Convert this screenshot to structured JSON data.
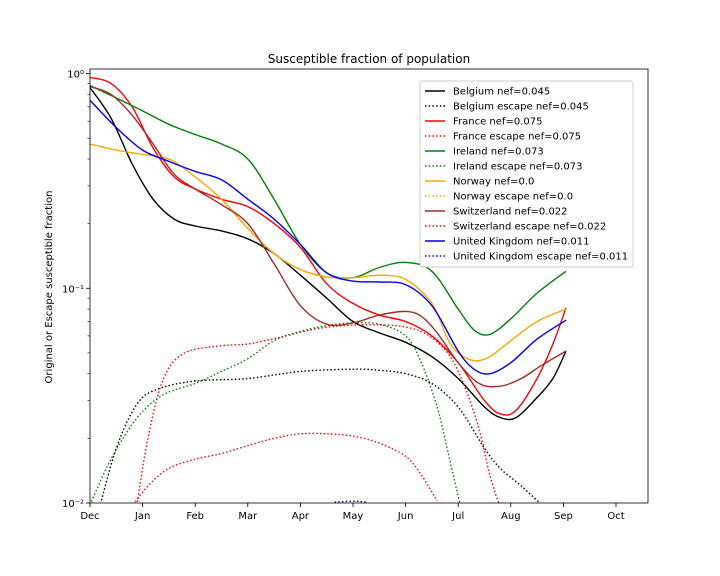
{
  "chart_data": {
    "type": "line",
    "title": "Susceptible fraction of population",
    "xlabel": "",
    "ylabel": "Original or Escape susceptible fraction",
    "yscale": "log",
    "ylim": [
      0.01,
      1.05
    ],
    "xlim": [
      0,
      10.6
    ],
    "x_ticks": [
      {
        "x": 0,
        "label": "Dec"
      },
      {
        "x": 1,
        "label": "Jan"
      },
      {
        "x": 2,
        "label": "Feb"
      },
      {
        "x": 3,
        "label": "Mar"
      },
      {
        "x": 4,
        "label": "Apr"
      },
      {
        "x": 5,
        "label": "May"
      },
      {
        "x": 6,
        "label": "Jun"
      },
      {
        "x": 7,
        "label": "Jul"
      },
      {
        "x": 8,
        "label": "Aug"
      },
      {
        "x": 9,
        "label": "Sep"
      },
      {
        "x": 10,
        "label": "Oct"
      }
    ],
    "y_ticks": [
      {
        "y": 0.01,
        "label": "10⁻²"
      },
      {
        "y": 0.1,
        "label": "10⁻¹"
      },
      {
        "y": 1,
        "label": "10⁰"
      }
    ],
    "legend_position": "top-right",
    "grid": false,
    "series": [
      {
        "name": "Belgium nef=0.045",
        "color": "#000000",
        "style": "solid",
        "points": [
          [
            0,
            0.86
          ],
          [
            0.4,
            0.62
          ],
          [
            0.8,
            0.38
          ],
          [
            1.2,
            0.26
          ],
          [
            1.6,
            0.21
          ],
          [
            2,
            0.195
          ],
          [
            2.5,
            0.185
          ],
          [
            3,
            0.17
          ],
          [
            3.5,
            0.145
          ],
          [
            4,
            0.115
          ],
          [
            4.5,
            0.09
          ],
          [
            5,
            0.07
          ],
          [
            5.5,
            0.062
          ],
          [
            6,
            0.056
          ],
          [
            6.5,
            0.048
          ],
          [
            7,
            0.038
          ],
          [
            7.5,
            0.028
          ],
          [
            7.8,
            0.025
          ],
          [
            8.1,
            0.025
          ],
          [
            8.5,
            0.031
          ],
          [
            8.8,
            0.038
          ],
          [
            9.05,
            0.051
          ]
        ]
      },
      {
        "name": "Belgium escape nef=0.045",
        "color": "#000000",
        "style": "dotted",
        "points": [
          [
            0.13,
            0.0085
          ],
          [
            0.5,
            0.018
          ],
          [
            0.9,
            0.029
          ],
          [
            1.3,
            0.034
          ],
          [
            2,
            0.037
          ],
          [
            3,
            0.038
          ],
          [
            4,
            0.041
          ],
          [
            5,
            0.042
          ],
          [
            5.5,
            0.0415
          ],
          [
            6,
            0.04
          ],
          [
            6.5,
            0.036
          ],
          [
            7,
            0.028
          ],
          [
            7.5,
            0.018
          ],
          [
            7.8,
            0.0145
          ],
          [
            8.2,
            0.012
          ],
          [
            8.65,
            0.0095
          ]
        ]
      },
      {
        "name": "France nef=0.075",
        "color": "#ff0000",
        "style": "solid",
        "points": [
          [
            0,
            0.96
          ],
          [
            0.4,
            0.9
          ],
          [
            0.8,
            0.7
          ],
          [
            1.2,
            0.45
          ],
          [
            1.6,
            0.33
          ],
          [
            2,
            0.29
          ],
          [
            2.5,
            0.26
          ],
          [
            3,
            0.24
          ],
          [
            3.5,
            0.2
          ],
          [
            4,
            0.155
          ],
          [
            4.5,
            0.105
          ],
          [
            5,
            0.085
          ],
          [
            5.5,
            0.075
          ],
          [
            6,
            0.07
          ],
          [
            6.5,
            0.06
          ],
          [
            7,
            0.045
          ],
          [
            7.5,
            0.03
          ],
          [
            7.8,
            0.026
          ],
          [
            8.1,
            0.027
          ],
          [
            8.5,
            0.038
          ],
          [
            8.8,
            0.055
          ],
          [
            9.05,
            0.081
          ]
        ]
      },
      {
        "name": "France escape nef=0.075",
        "color": "#ff0000",
        "style": "dotted",
        "points": [
          [
            0.87,
            0.009
          ],
          [
            1.1,
            0.02
          ],
          [
            1.4,
            0.038
          ],
          [
            1.8,
            0.05
          ],
          [
            2.5,
            0.054
          ],
          [
            3,
            0.055
          ],
          [
            3.6,
            0.059
          ],
          [
            4.2,
            0.064
          ],
          [
            4.8,
            0.067
          ],
          [
            5.5,
            0.0675
          ],
          [
            6,
            0.066
          ],
          [
            6.4,
            0.061
          ],
          [
            6.8,
            0.05
          ],
          [
            7.1,
            0.036
          ],
          [
            7.4,
            0.022
          ],
          [
            7.6,
            0.0135
          ],
          [
            7.8,
            0.0095
          ]
        ]
      },
      {
        "name": "Ireland nef=0.073",
        "color": "#008000",
        "style": "solid",
        "points": [
          [
            0,
            0.88
          ],
          [
            0.5,
            0.77
          ],
          [
            1,
            0.67
          ],
          [
            1.5,
            0.58
          ],
          [
            2,
            0.52
          ],
          [
            2.5,
            0.47
          ],
          [
            3,
            0.4
          ],
          [
            3.5,
            0.26
          ],
          [
            4,
            0.16
          ],
          [
            4.5,
            0.118
          ],
          [
            5,
            0.112
          ],
          [
            5.5,
            0.125
          ],
          [
            6,
            0.132
          ],
          [
            6.5,
            0.12
          ],
          [
            7,
            0.08
          ],
          [
            7.3,
            0.064
          ],
          [
            7.6,
            0.061
          ],
          [
            8,
            0.072
          ],
          [
            8.5,
            0.095
          ],
          [
            9.05,
            0.12
          ]
        ]
      },
      {
        "name": "Ireland escape nef=0.073",
        "color": "#008000",
        "style": "dotted",
        "points": [
          [
            0,
            0.0098
          ],
          [
            0.4,
            0.016
          ],
          [
            0.9,
            0.025
          ],
          [
            1.4,
            0.032
          ],
          [
            2,
            0.036
          ],
          [
            2.5,
            0.041
          ],
          [
            3,
            0.047
          ],
          [
            3.5,
            0.057
          ],
          [
            4,
            0.063
          ],
          [
            4.5,
            0.067
          ],
          [
            5,
            0.069
          ],
          [
            5.5,
            0.068
          ],
          [
            6,
            0.06
          ],
          [
            6.3,
            0.045
          ],
          [
            6.6,
            0.028
          ],
          [
            6.8,
            0.0175
          ],
          [
            7.05,
            0.0095
          ]
        ]
      },
      {
        "name": "Norway nef=0.0",
        "color": "#ffa500",
        "style": "solid",
        "points": [
          [
            0,
            0.47
          ],
          [
            0.5,
            0.44
          ],
          [
            1,
            0.42
          ],
          [
            1.5,
            0.4
          ],
          [
            2,
            0.33
          ],
          [
            2.5,
            0.26
          ],
          [
            3,
            0.19
          ],
          [
            3.5,
            0.145
          ],
          [
            4,
            0.122
          ],
          [
            4.5,
            0.113
          ],
          [
            5,
            0.112
          ],
          [
            5.5,
            0.115
          ],
          [
            6,
            0.11
          ],
          [
            6.5,
            0.085
          ],
          [
            6.8,
            0.058
          ],
          [
            7,
            0.05
          ],
          [
            7.3,
            0.046
          ],
          [
            7.6,
            0.048
          ],
          [
            8,
            0.057
          ],
          [
            8.5,
            0.07
          ],
          [
            9.05,
            0.08
          ]
        ]
      },
      {
        "name": "Norway escape nef=0.0",
        "color": "#ffa500",
        "style": "dotted",
        "points": []
      },
      {
        "name": "Switzerland nef=0.022",
        "color": "#a52a2a",
        "style": "solid",
        "points": [
          [
            0,
            0.87
          ],
          [
            0.4,
            0.8
          ],
          [
            0.8,
            0.64
          ],
          [
            1.2,
            0.47
          ],
          [
            1.6,
            0.34
          ],
          [
            2,
            0.29
          ],
          [
            2.5,
            0.245
          ],
          [
            3,
            0.2
          ],
          [
            3.5,
            0.13
          ],
          [
            4,
            0.083
          ],
          [
            4.5,
            0.068
          ],
          [
            5,
            0.069
          ],
          [
            5.5,
            0.075
          ],
          [
            6,
            0.078
          ],
          [
            6.3,
            0.074
          ],
          [
            6.6,
            0.062
          ],
          [
            7,
            0.045
          ],
          [
            7.4,
            0.036
          ],
          [
            7.8,
            0.035
          ],
          [
            8.2,
            0.038
          ],
          [
            8.6,
            0.044
          ],
          [
            9.05,
            0.051
          ]
        ]
      },
      {
        "name": "Switzerland escape nef=0.022",
        "color": "#ff0000",
        "style": "dotted",
        "points": [
          [
            0.78,
            0.0095
          ],
          [
            1.1,
            0.012
          ],
          [
            1.5,
            0.0145
          ],
          [
            2,
            0.016
          ],
          [
            2.5,
            0.017
          ],
          [
            3,
            0.0185
          ],
          [
            3.5,
            0.02
          ],
          [
            4,
            0.021
          ],
          [
            4.5,
            0.021
          ],
          [
            5,
            0.0205
          ],
          [
            5.5,
            0.019
          ],
          [
            6,
            0.0165
          ],
          [
            6.3,
            0.0135
          ],
          [
            6.6,
            0.0102
          ]
        ]
      },
      {
        "name": "United Kingdom nef=0.011",
        "color": "#0000ff",
        "style": "solid",
        "points": [
          [
            0,
            0.75
          ],
          [
            0.5,
            0.56
          ],
          [
            1,
            0.44
          ],
          [
            1.5,
            0.39
          ],
          [
            2,
            0.35
          ],
          [
            2.5,
            0.32
          ],
          [
            3,
            0.26
          ],
          [
            3.5,
            0.21
          ],
          [
            4,
            0.16
          ],
          [
            4.5,
            0.118
          ],
          [
            5,
            0.108
          ],
          [
            5.5,
            0.107
          ],
          [
            6,
            0.104
          ],
          [
            6.5,
            0.083
          ],
          [
            7,
            0.051
          ],
          [
            7.3,
            0.042
          ],
          [
            7.6,
            0.04
          ],
          [
            8,
            0.045
          ],
          [
            8.5,
            0.058
          ],
          [
            9.05,
            0.071
          ]
        ]
      },
      {
        "name": "United Kingdom escape nef=0.011",
        "color": "#0000ff",
        "style": "dotted",
        "points": [
          [
            4.65,
            0.0101
          ],
          [
            5,
            0.0102
          ],
          [
            5.25,
            0.0101
          ]
        ]
      }
    ]
  }
}
